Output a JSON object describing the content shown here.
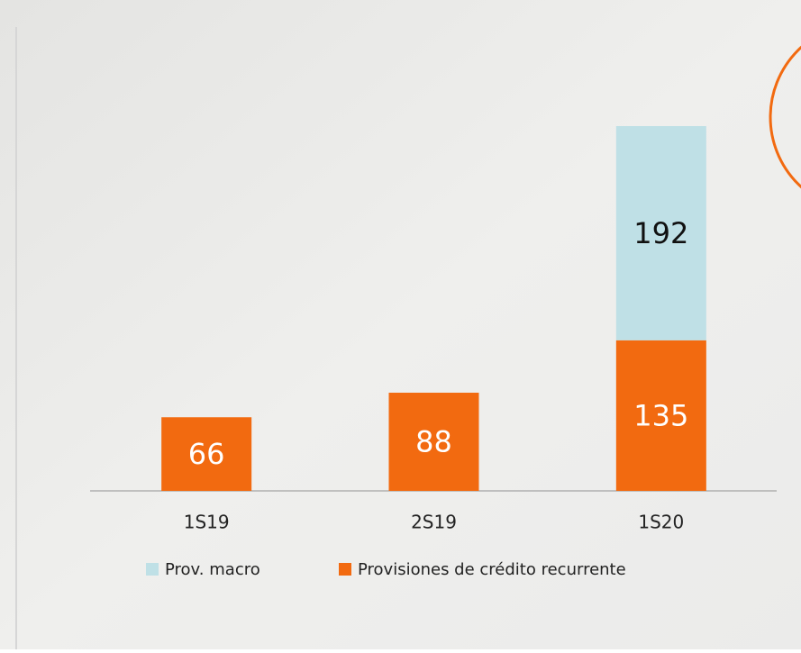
{
  "chart_data": {
    "type": "stacked_bar",
    "categories": [
      "1S19",
      "2S19",
      "1S20"
    ],
    "series": [
      {
        "name": "Provisiones de crédito recurrente",
        "color": "#f26a10",
        "values": [
          66,
          88,
          135
        ]
      },
      {
        "name": "Prov. macro",
        "color": "#bfe0e6",
        "values": [
          null,
          null,
          192
        ]
      }
    ]
  }
}
